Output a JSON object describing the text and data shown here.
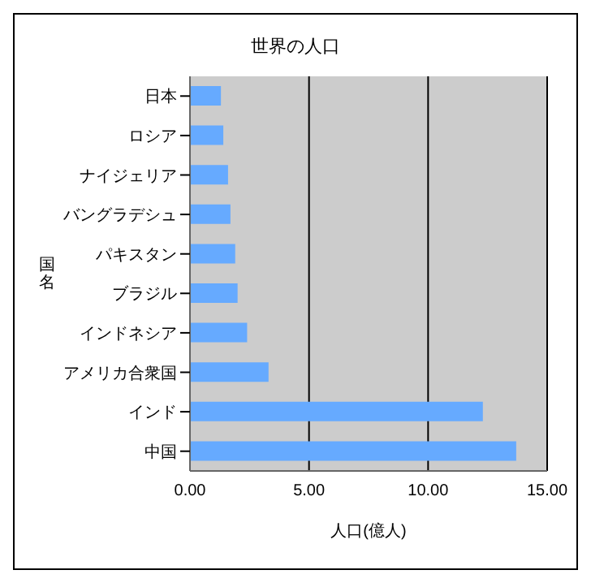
{
  "chart_data": {
    "type": "bar",
    "orientation": "horizontal",
    "title": "世界の人口",
    "xlabel": "人口(億人)",
    "ylabel": "国名",
    "categories": [
      "日本",
      "ロシア",
      "ナイジェリア",
      "バングラデシュ",
      "パキスタン",
      "ブラジル",
      "インドネシア",
      "アメリカ合衆国",
      "インド",
      "中国"
    ],
    "values": [
      1.3,
      1.4,
      1.6,
      1.7,
      1.9,
      2.0,
      2.4,
      3.3,
      12.3,
      13.7
    ],
    "color": "#66aaff",
    "xlim": [
      0,
      15
    ],
    "xticks": [
      {
        "value": 0,
        "label": "0.00"
      },
      {
        "value": 5,
        "label": "5.00"
      },
      {
        "value": 10,
        "label": "10.00"
      },
      {
        "value": 15,
        "label": "15.00"
      }
    ],
    "grid": "x",
    "legend": false
  }
}
